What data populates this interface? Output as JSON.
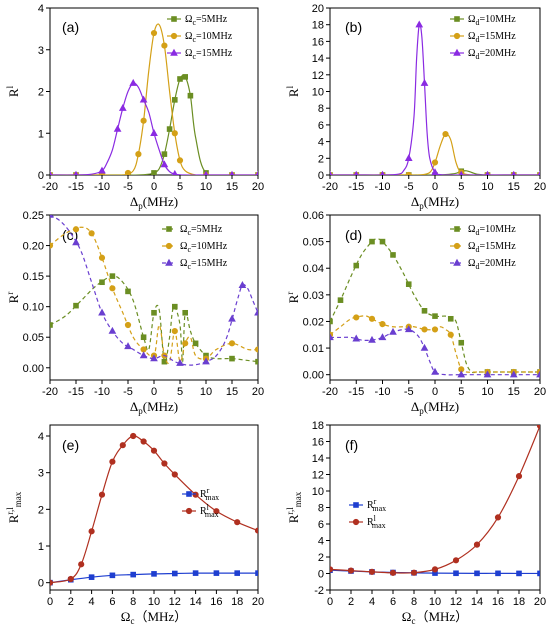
{
  "chart_data": [
    {
      "panel": "(a)",
      "type": "line",
      "xlabel": "Δp(MHz)",
      "ylabel": "Rl",
      "xlim": [
        -20,
        20
      ],
      "ylim": [
        0,
        4
      ],
      "xticks": [
        -20,
        -15,
        -10,
        -5,
        0,
        5,
        10,
        15,
        20
      ],
      "yticks": [
        0,
        1,
        2,
        3,
        4
      ],
      "legend": "top-right",
      "series": [
        {
          "name": "Ωc=5MHz",
          "color": "#6b8e23",
          "marker": "square",
          "dash": false,
          "x": [
            -20,
            -15,
            -10,
            -5,
            -3,
            -1,
            0,
            1,
            2,
            3,
            4,
            5,
            6,
            7,
            8,
            10,
            15,
            20
          ],
          "y": [
            0,
            0,
            0,
            0,
            0,
            0.02,
            0.05,
            0.15,
            0.5,
            1.1,
            1.8,
            2.3,
            2.35,
            1.9,
            0.9,
            0.05,
            0,
            0
          ],
          "mx": [
            -20,
            -15,
            -10,
            -5,
            0,
            2,
            3,
            4,
            5,
            6,
            7,
            10,
            15,
            20
          ]
        },
        {
          "name": "Ωc=10MHz",
          "color": "#d4a017",
          "marker": "circle",
          "dash": false,
          "x": [
            -20,
            -15,
            -10,
            -6,
            -4,
            -3,
            -2,
            -1,
            0,
            1,
            2,
            3,
            4,
            5,
            6,
            8,
            10,
            15,
            20
          ],
          "y": [
            0,
            0,
            0,
            0,
            0.1,
            0.5,
            1.3,
            2.5,
            3.4,
            3.6,
            3.1,
            2.0,
            1.0,
            0.35,
            0.1,
            0,
            0,
            0,
            0
          ],
          "mx": [
            -20,
            -15,
            -10,
            -5,
            -3,
            -2,
            0,
            2,
            4,
            5,
            10,
            15,
            20
          ]
        },
        {
          "name": "Ωc=15MHz",
          "color": "#8a2be2",
          "marker": "triangle",
          "dash": false,
          "x": [
            -20,
            -15,
            -12,
            -10,
            -9,
            -8,
            -7,
            -6,
            -5,
            -4,
            -3,
            -2,
            -1,
            0,
            1,
            2,
            3,
            4,
            6,
            10,
            15,
            20
          ],
          "y": [
            0,
            0,
            0.02,
            0.1,
            0.3,
            0.6,
            1.1,
            1.6,
            2.0,
            2.2,
            2.1,
            1.8,
            1.5,
            1.0,
            0.6,
            0.25,
            0.08,
            0.02,
            0,
            0,
            0,
            0
          ],
          "mx": [
            -20,
            -15,
            -10,
            -7,
            -6,
            -4,
            -2,
            0,
            2,
            4,
            10,
            15,
            20
          ]
        }
      ]
    },
    {
      "panel": "(b)",
      "type": "line",
      "xlabel": "Δp(MHz)",
      "ylabel": "Rl",
      "xlim": [
        -20,
        20
      ],
      "ylim": [
        0,
        20
      ],
      "xticks": [
        -20,
        -15,
        -10,
        -5,
        0,
        5,
        10,
        15,
        20
      ],
      "yticks": [
        0,
        2,
        4,
        6,
        8,
        10,
        12,
        14,
        16,
        18,
        20
      ],
      "legend": "top-right",
      "series": [
        {
          "name": "Ωd=10MHz",
          "color": "#6b8e23",
          "marker": "square",
          "dash": false,
          "x": [
            -20,
            -15,
            -10,
            -5,
            0,
            2,
            4,
            5,
            6,
            7,
            8,
            10,
            15,
            20
          ],
          "y": [
            0,
            0,
            0,
            0,
            0,
            0.05,
            0.2,
            0.45,
            0.5,
            0.3,
            0.1,
            0,
            0,
            0
          ],
          "mx": [
            -20,
            -15,
            -10,
            -5,
            0,
            5,
            10,
            15,
            20
          ]
        },
        {
          "name": "Ωd=15MHz",
          "color": "#d4a017",
          "marker": "circle",
          "dash": false,
          "x": [
            -20,
            -15,
            -10,
            -5,
            -3,
            -1,
            0,
            1,
            2,
            3,
            4,
            5,
            7,
            10,
            15,
            20
          ],
          "y": [
            0,
            0,
            0,
            0,
            0,
            0.3,
            1.5,
            3.5,
            4.9,
            4.2,
            1.5,
            0.3,
            0,
            0,
            0,
            0
          ],
          "mx": [
            -20,
            -15,
            -10,
            -5,
            0,
            2,
            5,
            10,
            15,
            20
          ]
        },
        {
          "name": "Ωd=20MHz",
          "color": "#8a2be2",
          "marker": "triangle",
          "dash": false,
          "x": [
            -20,
            -15,
            -10,
            -7,
            -6,
            -5,
            -4,
            -3.5,
            -3,
            -2.5,
            -2,
            -1.5,
            -1,
            0,
            1,
            2,
            5,
            10,
            15,
            20
          ],
          "y": [
            0,
            0,
            0,
            0.1,
            0.5,
            2.0,
            7.0,
            14.0,
            18.0,
            16.5,
            11.0,
            5.0,
            2.0,
            0.3,
            0.05,
            0,
            0,
            0,
            0,
            0
          ],
          "mx": [
            -20,
            -15,
            -10,
            -5,
            -3,
            -2,
            0,
            5,
            10,
            15,
            20
          ]
        }
      ]
    },
    {
      "panel": "(c)",
      "type": "line",
      "xlabel": "Δp(MHz)",
      "ylabel": "Rr",
      "xlim": [
        -20,
        20
      ],
      "ylim": [
        -0.02,
        0.25
      ],
      "xticks": [
        -20,
        -15,
        -10,
        -5,
        0,
        5,
        10,
        15,
        20
      ],
      "yticks": [
        0.0,
        0.05,
        0.1,
        0.15,
        0.2,
        0.25
      ],
      "legend": "top-right",
      "series": [
        {
          "name": "Ωc=5MHz",
          "color": "#6b8e23",
          "marker": "square",
          "dash": true,
          "x": [
            -20,
            -17,
            -14,
            -11,
            -8,
            -6,
            -4,
            -2,
            -1,
            0,
            1,
            2,
            3,
            3.5,
            4,
            5,
            5.5,
            6,
            7,
            8,
            10,
            12,
            15,
            18,
            20
          ],
          "y": [
            0.07,
            0.085,
            0.11,
            0.135,
            0.15,
            0.14,
            0.11,
            0.05,
            0.03,
            0.09,
            0.095,
            0.01,
            0.05,
            0.09,
            0.1,
            0.07,
            0.01,
            0.09,
            0.06,
            0.04,
            0.02,
            0.015,
            0.015,
            0.012,
            0.01
          ],
          "mx": [
            -20,
            -15,
            -10,
            -8,
            -5,
            -2,
            0,
            2,
            4,
            6,
            8,
            10,
            15,
            20
          ]
        },
        {
          "name": "Ωc=10MHz",
          "color": "#d4a017",
          "marker": "circle",
          "dash": true,
          "x": [
            -20,
            -17,
            -14,
            -12,
            -10,
            -8,
            -6,
            -4,
            -2,
            0,
            1,
            2,
            3,
            4,
            5,
            6,
            7,
            8,
            10,
            12,
            15,
            18,
            20
          ],
          "y": [
            0.2,
            0.22,
            0.23,
            0.22,
            0.18,
            0.13,
            0.09,
            0.05,
            0.03,
            0.02,
            0.07,
            0.02,
            0.01,
            0.06,
            0.01,
            0.04,
            0.05,
            0.02,
            0.015,
            0.03,
            0.04,
            0.03,
            0.03
          ],
          "mx": [
            -20,
            -15,
            -12,
            -10,
            -8,
            -5,
            -2,
            0,
            2,
            4,
            6,
            10,
            15,
            20
          ]
        },
        {
          "name": "Ωc=15MHz",
          "color": "#6a3fd0",
          "marker": "triangle",
          "dash": true,
          "x": [
            -20,
            -18,
            -16,
            -14,
            -12,
            -10,
            -8,
            -6,
            -4,
            -2,
            0,
            2,
            4,
            6,
            8,
            10,
            12,
            14,
            16,
            17,
            18,
            19,
            20
          ],
          "y": [
            0.25,
            0.24,
            0.22,
            0.19,
            0.14,
            0.09,
            0.06,
            0.04,
            0.03,
            0.02,
            0.015,
            0.02,
            0.01,
            0.005,
            0.005,
            0.01,
            0.02,
            0.05,
            0.11,
            0.135,
            0.13,
            0.11,
            0.09
          ],
          "mx": [
            -20,
            -15,
            -10,
            -8,
            -5,
            -2,
            0,
            5,
            10,
            15,
            17,
            20
          ]
        }
      ]
    },
    {
      "panel": "(d)",
      "type": "line",
      "xlabel": "Δp(MHz)",
      "ylabel": "Rr",
      "xlim": [
        -20,
        20
      ],
      "ylim": [
        -0.002,
        0.06
      ],
      "xticks": [
        -20,
        -15,
        -10,
        -5,
        0,
        5,
        10,
        15,
        20
      ],
      "yticks": [
        0.0,
        0.01,
        0.02,
        0.03,
        0.04,
        0.05,
        0.06
      ],
      "legend": "top-right",
      "series": [
        {
          "name": "Ωd=10MHz",
          "color": "#6b8e23",
          "marker": "square",
          "dash": true,
          "x": [
            -20,
            -18,
            -16,
            -14,
            -12,
            -11,
            -10,
            -8,
            -6,
            -4,
            -2,
            0,
            2,
            3,
            4,
            5,
            6,
            7,
            8,
            10,
            15,
            20
          ],
          "y": [
            0.02,
            0.028,
            0.037,
            0.045,
            0.05,
            0.051,
            0.05,
            0.045,
            0.038,
            0.03,
            0.024,
            0.022,
            0.022,
            0.021,
            0.02,
            0.012,
            0.004,
            0.001,
            0.001,
            0.001,
            0.001,
            0.001
          ],
          "mx": [
            -20,
            -18,
            -15,
            -12,
            -10,
            -8,
            -5,
            -2,
            0,
            3,
            5,
            10,
            15,
            20
          ]
        },
        {
          "name": "Ωd=15MHz",
          "color": "#d4a017",
          "marker": "circle",
          "dash": true,
          "x": [
            -20,
            -18,
            -16,
            -14,
            -13,
            -12,
            -10,
            -8,
            -6,
            -4,
            -2,
            0,
            1,
            2,
            3,
            4,
            5,
            6,
            8,
            10,
            15,
            20
          ],
          "y": [
            0.015,
            0.018,
            0.021,
            0.022,
            0.022,
            0.021,
            0.019,
            0.018,
            0.018,
            0.018,
            0.017,
            0.017,
            0.018,
            0.017,
            0.015,
            0.008,
            0.002,
            0.001,
            0.001,
            0.001,
            0.001,
            0.001
          ],
          "mx": [
            -20,
            -15,
            -12,
            -10,
            -5,
            -2,
            0,
            3,
            5,
            10,
            15,
            20
          ]
        },
        {
          "name": "Ωd=20MHz",
          "color": "#6a3fd0",
          "marker": "triangle",
          "dash": true,
          "x": [
            -20,
            -18,
            -16,
            -14,
            -12,
            -10,
            -8,
            -6,
            -5,
            -4,
            -3,
            -2,
            -1,
            0,
            2,
            5,
            10,
            15,
            20
          ],
          "y": [
            0.014,
            0.014,
            0.014,
            0.013,
            0.013,
            0.014,
            0.016,
            0.017,
            0.017,
            0.016,
            0.014,
            0.01,
            0.005,
            0.001,
            0,
            0,
            0,
            0,
            0
          ],
          "mx": [
            -20,
            -15,
            -12,
            -10,
            -8,
            -5,
            -2,
            0,
            5,
            10,
            15,
            20
          ]
        }
      ]
    },
    {
      "panel": "(e)",
      "type": "line",
      "xlabel": "Ωc（MHz）",
      "ylabel": "Rr,lmax",
      "xlim": [
        0,
        20
      ],
      "ylim": [
        -0.2,
        4.3
      ],
      "xticks": [
        0,
        2,
        4,
        6,
        8,
        10,
        12,
        14,
        16,
        18,
        20
      ],
      "yticks": [
        0,
        1,
        2,
        3,
        4
      ],
      "legend": "right",
      "series": [
        {
          "name": "Rrmax",
          "color": "#1f3fd0",
          "marker": "square",
          "dash": false,
          "x": [
            0,
            2,
            4,
            6,
            8,
            10,
            12,
            14,
            16,
            18,
            20
          ],
          "y": [
            0,
            0.08,
            0.15,
            0.2,
            0.22,
            0.24,
            0.25,
            0.26,
            0.26,
            0.26,
            0.26
          ]
        },
        {
          "name": "Rlmax",
          "color": "#b03020",
          "marker": "circle",
          "dash": false,
          "x": [
            0,
            2,
            3,
            4,
            5,
            6,
            7,
            8,
            9,
            10,
            11,
            12,
            14,
            16,
            18,
            20
          ],
          "y": [
            0,
            0.1,
            0.5,
            1.4,
            2.4,
            3.3,
            3.75,
            4.0,
            3.85,
            3.6,
            3.25,
            2.95,
            2.4,
            1.95,
            1.65,
            1.42
          ]
        }
      ]
    },
    {
      "panel": "(f)",
      "type": "line",
      "xlabel": "Ωc（MHz）",
      "ylabel": "Rr,lmax",
      "xlim": [
        0,
        20
      ],
      "ylim": [
        -2,
        18
      ],
      "xticks": [
        0,
        2,
        4,
        6,
        8,
        10,
        12,
        14,
        16,
        18,
        20
      ],
      "yticks": [
        -2,
        0,
        2,
        4,
        6,
        8,
        10,
        12,
        14,
        16,
        18
      ],
      "legend": "top-left",
      "series": [
        {
          "name": "Rrmax",
          "color": "#1f3fd0",
          "marker": "square",
          "dash": false,
          "x": [
            0,
            2,
            4,
            6,
            8,
            10,
            12,
            14,
            16,
            18,
            20
          ],
          "y": [
            0.4,
            0.3,
            0.2,
            0.12,
            0.08,
            0.05,
            0.03,
            0.02,
            0.02,
            0.01,
            0.01
          ]
        },
        {
          "name": "Rlmax",
          "color": "#b03020",
          "marker": "circle",
          "dash": false,
          "x": [
            0,
            2,
            4,
            6,
            8,
            10,
            12,
            14,
            16,
            18,
            20
          ],
          "y": [
            0.5,
            0.35,
            0.2,
            0.08,
            0.1,
            0.5,
            1.6,
            3.5,
            6.8,
            11.8,
            17.9
          ]
        }
      ]
    }
  ]
}
